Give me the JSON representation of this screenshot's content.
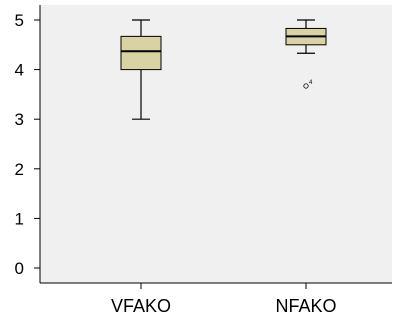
{
  "chart_data": {
    "type": "boxplot",
    "title": "",
    "xlabel": "",
    "ylabel": "",
    "ylim": [
      0,
      5
    ],
    "y_ticks": [
      "0",
      "1",
      "2",
      "3",
      "4",
      "5"
    ],
    "categories": [
      "VFAKO",
      "NFAKO"
    ],
    "boxes": [
      {
        "category": "VFAKO",
        "min": 3.0,
        "q1": 4.0,
        "median": 4.37,
        "q3": 4.67,
        "max": 5.0,
        "outliers": []
      },
      {
        "category": "NFAKO",
        "min": 4.33,
        "q1": 4.5,
        "median": 4.67,
        "q3": 4.83,
        "max": 5.0,
        "outliers": [
          {
            "value": 3.67,
            "label": "4"
          }
        ]
      }
    ],
    "grid": false,
    "colors": {
      "plot_background": "#f0f0f0",
      "box_fill": "#d9d3a3",
      "line": "#000000"
    }
  }
}
